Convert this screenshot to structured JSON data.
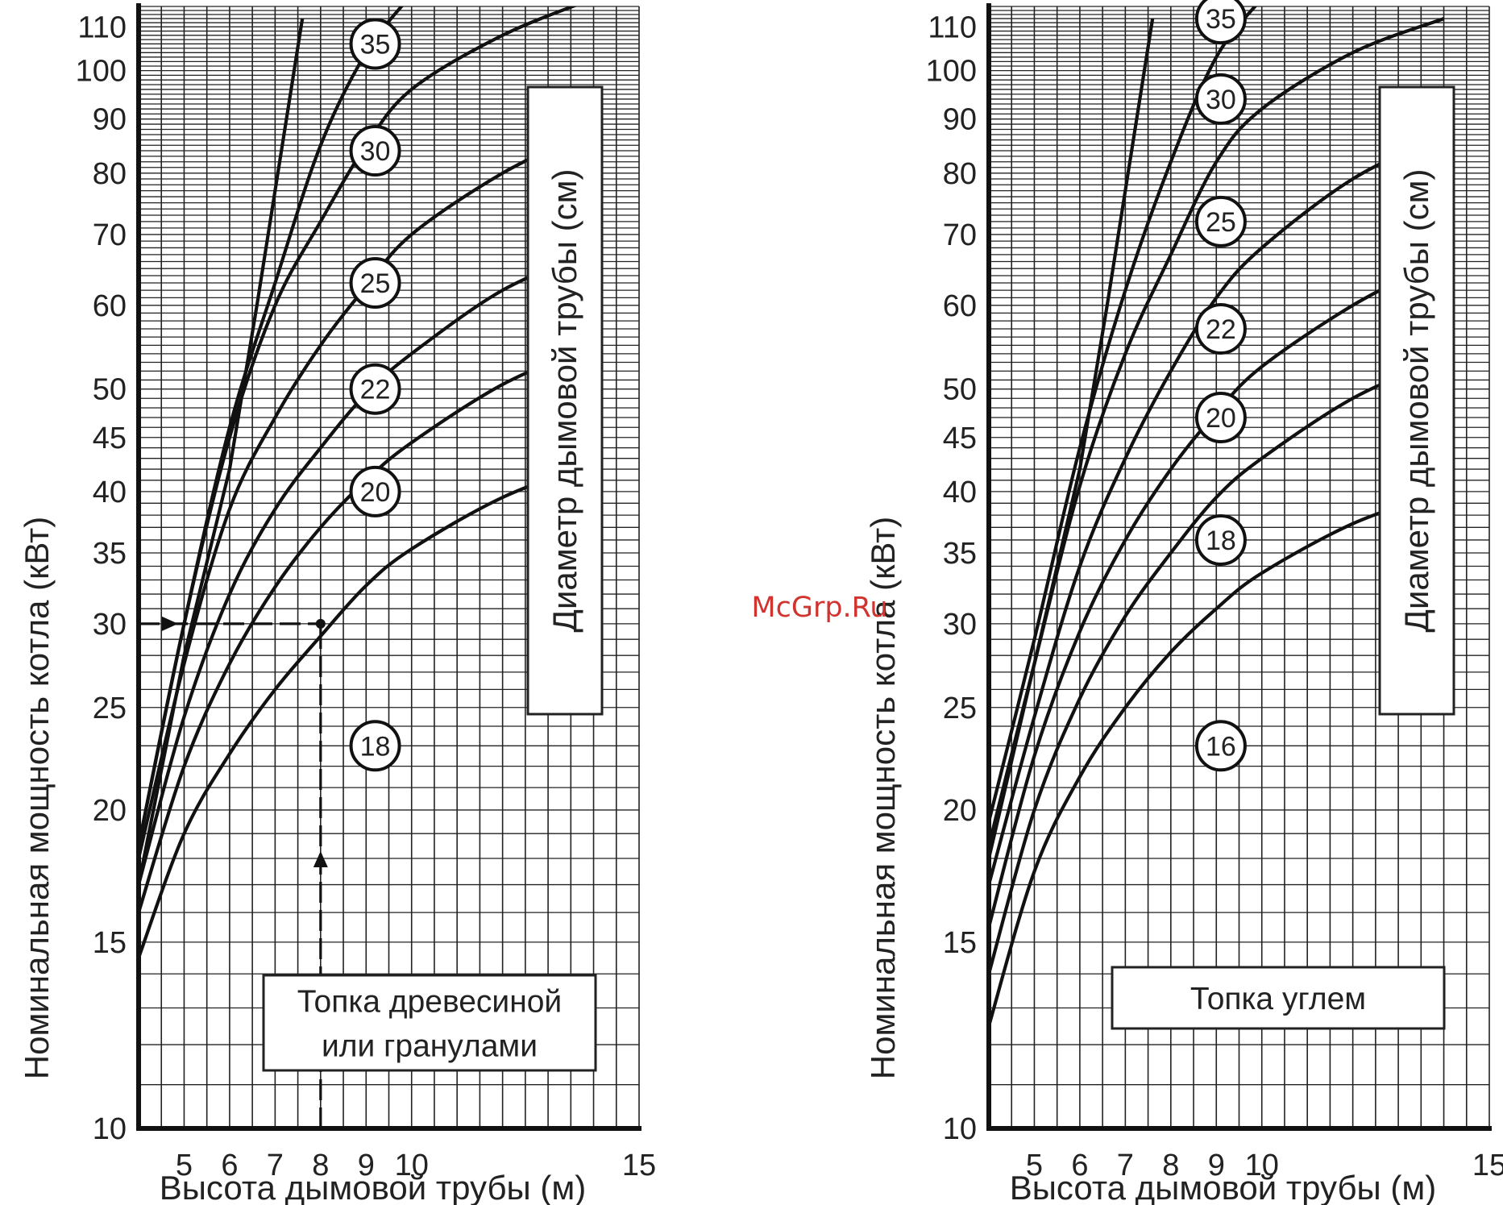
{
  "watermark": "McGrp.Ru",
  "chart_data": [
    {
      "type": "line",
      "title": "",
      "xlabel": "Высота дымовой трубы (м)",
      "ylabel": "Номинальная мощность котла (кВт)",
      "legend_title": "Диаметр дымовой трубы (см)",
      "note": [
        "Топка древесиной",
        "или гранулами"
      ],
      "xlim": [
        4,
        15
      ],
      "ylim": [
        10,
        115
      ],
      "y_scale": "log",
      "x_ticks": [
        5,
        6,
        7,
        8,
        9,
        10,
        15
      ],
      "y_ticks": [
        10,
        15,
        20,
        25,
        30,
        35,
        40,
        45,
        50,
        60,
        70,
        80,
        90,
        100,
        110
      ],
      "grid": true,
      "series": [
        {
          "name": "18",
          "points": [
            [
              4,
              14.5
            ],
            [
              5,
              19
            ],
            [
              6,
              22.6
            ],
            [
              7,
              26
            ],
            [
              8,
              29.2
            ],
            [
              9,
              32.6
            ],
            [
              10,
              35.3
            ],
            [
              12,
              39.5
            ],
            [
              14,
              42.5
            ]
          ]
        },
        {
          "name": "20",
          "points": [
            [
              4,
              16
            ],
            [
              5,
              22
            ],
            [
              6,
              27.5
            ],
            [
              7,
              32.5
            ],
            [
              8,
              37
            ],
            [
              9,
              41
            ],
            [
              10,
              44.5
            ],
            [
              12,
              50.5
            ],
            [
              14,
              55
            ]
          ]
        },
        {
          "name": "22",
          "points": [
            [
              4,
              17
            ],
            [
              5,
              24.5
            ],
            [
              6,
              32
            ],
            [
              7,
              38.5
            ],
            [
              8,
              44
            ],
            [
              9,
              49.5
            ],
            [
              10,
              54
            ],
            [
              12,
              62
            ],
            [
              14,
              67.5
            ]
          ]
        },
        {
          "name": "25",
          "points": [
            [
              4,
              18
            ],
            [
              5,
              27.5
            ],
            [
              6,
              38.5
            ],
            [
              7,
              47
            ],
            [
              8,
              55
            ],
            [
              9,
              62.5
            ],
            [
              10,
              70
            ],
            [
              12,
              80
            ],
            [
              14,
              88
            ]
          ]
        },
        {
          "name": "30",
          "points": [
            [
              4,
              18.5
            ],
            [
              5,
              30
            ],
            [
              6,
              45
            ],
            [
              7,
              60
            ],
            [
              8,
              72
            ],
            [
              9,
              85
            ],
            [
              10,
              96
            ],
            [
              12,
              108
            ],
            [
              14,
              117
            ]
          ]
        },
        {
          "name": "35",
          "points": [
            [
              4,
              18.5
            ],
            [
              5,
              30
            ],
            [
              6,
              46
            ],
            [
              7,
              63
            ],
            [
              8,
              85
            ],
            [
              9,
              104
            ],
            [
              10,
              118
            ]
          ]
        }
      ],
      "boundary_line": [
        [
          4,
          17
        ],
        [
          5,
          28
        ],
        [
          6,
          42
        ],
        [
          6.6,
          60
        ],
        [
          7.1,
          82
        ],
        [
          7.6,
          112
        ]
      ],
      "circle_labels": [
        {
          "text": "35",
          "x": 9.2,
          "y": 106
        },
        {
          "text": "30",
          "x": 9.2,
          "y": 84
        },
        {
          "text": "25",
          "x": 9.2,
          "y": 63
        },
        {
          "text": "22",
          "x": 9.2,
          "y": 50
        },
        {
          "text": "20",
          "x": 9.2,
          "y": 40
        },
        {
          "text": "18",
          "x": 9.2,
          "y": 23
        }
      ],
      "example": {
        "x": 8,
        "y": 30
      }
    },
    {
      "type": "line",
      "title": "",
      "xlabel": "Высота дымовой трубы (м)",
      "ylabel": "Номинальная мощность котла (кВт)",
      "legend_title": "Диаметр дымовой трубы (см)",
      "note": [
        "Топка углем"
      ],
      "xlim": [
        4,
        15
      ],
      "ylim": [
        10,
        115
      ],
      "y_scale": "log",
      "x_ticks": [
        5,
        6,
        7,
        8,
        9,
        10,
        15
      ],
      "y_ticks": [
        10,
        15,
        20,
        25,
        30,
        35,
        40,
        45,
        50,
        60,
        70,
        80,
        90,
        100,
        110
      ],
      "grid": true,
      "series": [
        {
          "name": "16",
          "points": [
            [
              4,
              12.5
            ],
            [
              5,
              17.5
            ],
            [
              6,
              21.5
            ],
            [
              7,
              25
            ],
            [
              8,
              28.2
            ],
            [
              9,
              31
            ],
            [
              10,
              33.5
            ],
            [
              12,
              37.3
            ],
            [
              14,
              40
            ]
          ]
        },
        {
          "name": "18",
          "points": [
            [
              4,
              14
            ],
            [
              5,
              20
            ],
            [
              6,
              25.5
            ],
            [
              7,
              30.5
            ],
            [
              8,
              35
            ],
            [
              9,
              39.5
            ],
            [
              10,
              43
            ],
            [
              12,
              49
            ],
            [
              14,
              53.5
            ]
          ]
        },
        {
          "name": "20",
          "points": [
            [
              4,
              15.5
            ],
            [
              5,
              22.5
            ],
            [
              6,
              29.5
            ],
            [
              7,
              36
            ],
            [
              8,
              42
            ],
            [
              9,
              47.5
            ],
            [
              10,
              52.5
            ],
            [
              12,
              60
            ],
            [
              14,
              66.5
            ]
          ]
        },
        {
          "name": "22",
          "points": [
            [
              4,
              17
            ],
            [
              5,
              24.5
            ],
            [
              6,
              34
            ],
            [
              7,
              43
            ],
            [
              8,
              52
            ],
            [
              9,
              61
            ],
            [
              10,
              68
            ],
            [
              12,
              79
            ],
            [
              14,
              87
            ]
          ]
        },
        {
          "name": "25",
          "points": [
            [
              4,
              18.5
            ],
            [
              5,
              27.5
            ],
            [
              6,
              40.5
            ],
            [
              7,
              54
            ],
            [
              8,
              67
            ],
            [
              9,
              82
            ],
            [
              10,
              92
            ],
            [
              12,
              104
            ],
            [
              14,
              112
            ]
          ]
        },
        {
          "name": "30",
          "points": [
            [
              4,
              19.5
            ],
            [
              5,
              29
            ],
            [
              6,
              44
            ],
            [
              7,
              62
            ],
            [
              8,
              82
            ],
            [
              9,
              103
            ],
            [
              10,
              117
            ]
          ]
        }
      ],
      "boundary_line": [
        [
          4,
          18
        ],
        [
          5,
          27.5
        ],
        [
          6,
          42
        ],
        [
          6.6,
          60
        ],
        [
          7.1,
          82
        ],
        [
          7.6,
          112
        ]
      ],
      "circle_labels": [
        {
          "text": "35",
          "x": 9.1,
          "y": 112
        },
        {
          "text": "30",
          "x": 9.1,
          "y": 94
        },
        {
          "text": "25",
          "x": 9.1,
          "y": 72
        },
        {
          "text": "22",
          "x": 9.1,
          "y": 57
        },
        {
          "text": "20",
          "x": 9.1,
          "y": 47
        },
        {
          "text": "18",
          "x": 9.1,
          "y": 36
        },
        {
          "text": "16",
          "x": 9.1,
          "y": 23
        }
      ]
    }
  ]
}
